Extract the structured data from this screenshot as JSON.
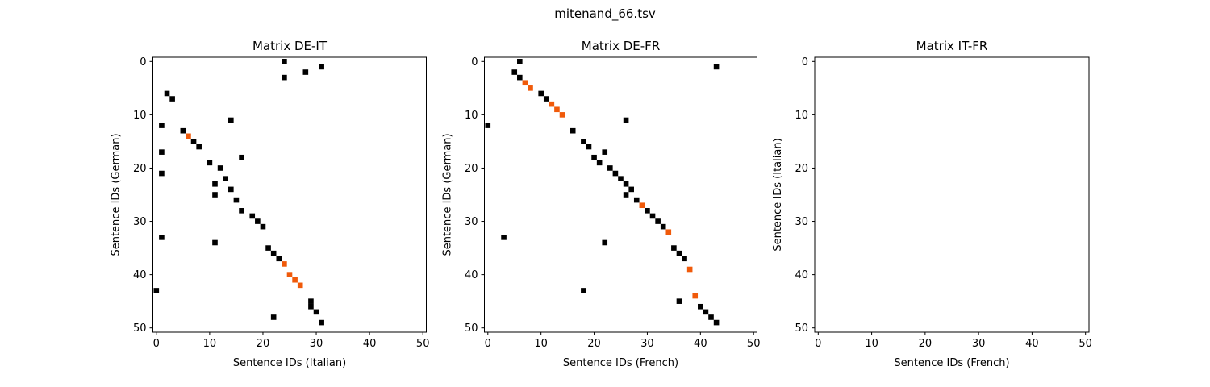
{
  "figure": {
    "suptitle": "mitenand_66.tsv"
  },
  "colors": {
    "match": "#000000",
    "highlight": "#f05a0a",
    "axis": "#000000",
    "background": "#ffffff"
  },
  "chart_data": [
    {
      "type": "heatmap",
      "title": "Matrix DE-IT",
      "xlabel": "Sentence IDs (Italian)",
      "ylabel": "Sentence IDs (German)",
      "xlim": [
        0,
        50
      ],
      "ylim": [
        50,
        0
      ],
      "xticks": [
        0,
        10,
        20,
        30,
        40,
        50
      ],
      "yticks": [
        0,
        10,
        20,
        30,
        40,
        50
      ],
      "grid": false,
      "series": [
        {
          "name": "",
          "color": "#000000",
          "points": [
            [
              24,
              0
            ],
            [
              31,
              1
            ],
            [
              28,
              2
            ],
            [
              24,
              3
            ],
            [
              2,
              6
            ],
            [
              3,
              7
            ],
            [
              14,
              11
            ],
            [
              1,
              12
            ],
            [
              5,
              13
            ],
            [
              7,
              15
            ],
            [
              8,
              16
            ],
            [
              1,
              17
            ],
            [
              16,
              18
            ],
            [
              10,
              19
            ],
            [
              12,
              20
            ],
            [
              1,
              21
            ],
            [
              13,
              22
            ],
            [
              11,
              23
            ],
            [
              14,
              24
            ],
            [
              11,
              25
            ],
            [
              15,
              26
            ],
            [
              16,
              28
            ],
            [
              18,
              29
            ],
            [
              19,
              30
            ],
            [
              20,
              31
            ],
            [
              1,
              33
            ],
            [
              11,
              34
            ],
            [
              21,
              35
            ],
            [
              22,
              36
            ],
            [
              23,
              37
            ],
            [
              0,
              43
            ],
            [
              29,
              45
            ],
            [
              29,
              46
            ],
            [
              30,
              47
            ],
            [
              22,
              48
            ],
            [
              31,
              49
            ]
          ]
        },
        {
          "name": "",
          "color": "#f05a0a",
          "points": [
            [
              6,
              14
            ],
            [
              24,
              38
            ],
            [
              25,
              40
            ],
            [
              26,
              41
            ],
            [
              27,
              42
            ]
          ]
        }
      ]
    },
    {
      "type": "heatmap",
      "title": "Matrix DE-FR",
      "xlabel": "Sentence IDs (French)",
      "ylabel": "Sentence IDs (German)",
      "xlim": [
        0,
        50
      ],
      "ylim": [
        50,
        0
      ],
      "xticks": [
        0,
        10,
        20,
        30,
        40,
        50
      ],
      "yticks": [
        0,
        10,
        20,
        30,
        40,
        50
      ],
      "grid": false,
      "series": [
        {
          "name": "",
          "color": "#000000",
          "points": [
            [
              6,
              0
            ],
            [
              43,
              1
            ],
            [
              5,
              2
            ],
            [
              6,
              3
            ],
            [
              10,
              6
            ],
            [
              11,
              7
            ],
            [
              26,
              11
            ],
            [
              0,
              12
            ],
            [
              16,
              13
            ],
            [
              18,
              15
            ],
            [
              19,
              16
            ],
            [
              22,
              17
            ],
            [
              20,
              18
            ],
            [
              21,
              19
            ],
            [
              23,
              20
            ],
            [
              24,
              21
            ],
            [
              25,
              22
            ],
            [
              26,
              23
            ],
            [
              27,
              24
            ],
            [
              26,
              25
            ],
            [
              28,
              26
            ],
            [
              30,
              28
            ],
            [
              31,
              29
            ],
            [
              32,
              30
            ],
            [
              33,
              31
            ],
            [
              3,
              33
            ],
            [
              22,
              34
            ],
            [
              35,
              35
            ],
            [
              36,
              36
            ],
            [
              37,
              37
            ],
            [
              18,
              43
            ],
            [
              36,
              45
            ],
            [
              40,
              46
            ],
            [
              41,
              47
            ],
            [
              42,
              48
            ],
            [
              43,
              49
            ]
          ]
        },
        {
          "name": "",
          "color": "#f05a0a",
          "points": [
            [
              7,
              4
            ],
            [
              8,
              5
            ],
            [
              12,
              8
            ],
            [
              13,
              9
            ],
            [
              14,
              10
            ],
            [
              29,
              27
            ],
            [
              34,
              32
            ],
            [
              38,
              39
            ],
            [
              39,
              44
            ]
          ]
        }
      ]
    },
    {
      "type": "heatmap",
      "title": "Matrix IT-FR",
      "xlabel": "Sentence IDs (French)",
      "ylabel": "Sentence IDs (Italian)",
      "xlim": [
        0,
        50
      ],
      "ylim": [
        50,
        0
      ],
      "xticks": [
        0,
        10,
        20,
        30,
        40,
        50
      ],
      "yticks": [
        0,
        10,
        20,
        30,
        40,
        50
      ],
      "grid": false,
      "series": []
    }
  ]
}
